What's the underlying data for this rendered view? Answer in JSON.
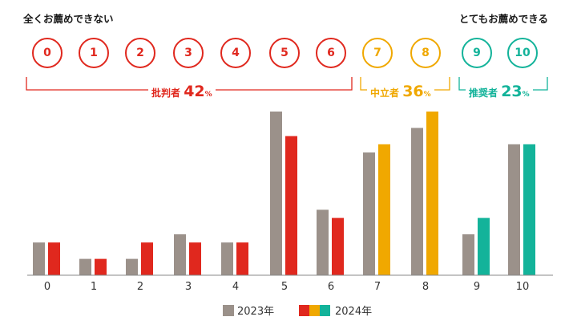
{
  "scale": {
    "left_label": "全くお薦めできない",
    "right_label": "とてもお薦めできる",
    "circles": [
      "0",
      "1",
      "2",
      "3",
      "4",
      "5",
      "6",
      "7",
      "8",
      "9",
      "10"
    ]
  },
  "groups": {
    "detractors": {
      "name": "批判者",
      "value": "42",
      "unit": "%"
    },
    "passives": {
      "name": "中立者",
      "value": "36",
      "unit": "%"
    },
    "promoters": {
      "name": "推奨者",
      "value": "23",
      "unit": "%"
    }
  },
  "colors": {
    "detractor": "#e0281e",
    "passive": "#f0a800",
    "promoter": "#13b39a",
    "year2023": "#9b918a"
  },
  "legend": {
    "label_2023": "2023年",
    "label_2024": "2024年"
  },
  "chart_data": {
    "type": "bar",
    "categories": [
      "0",
      "1",
      "2",
      "3",
      "4",
      "5",
      "6",
      "7",
      "8",
      "9",
      "10"
    ],
    "series": [
      {
        "name": "2023年",
        "values": [
          4,
          2,
          2,
          5,
          4,
          20,
          8,
          15,
          18,
          5,
          16
        ]
      },
      {
        "name": "2024年",
        "values": [
          4,
          2,
          4,
          4,
          4,
          17,
          7,
          16,
          20,
          7,
          16
        ]
      }
    ],
    "ylim": [
      0,
      20
    ],
    "grid": false,
    "legend": "bottom"
  }
}
